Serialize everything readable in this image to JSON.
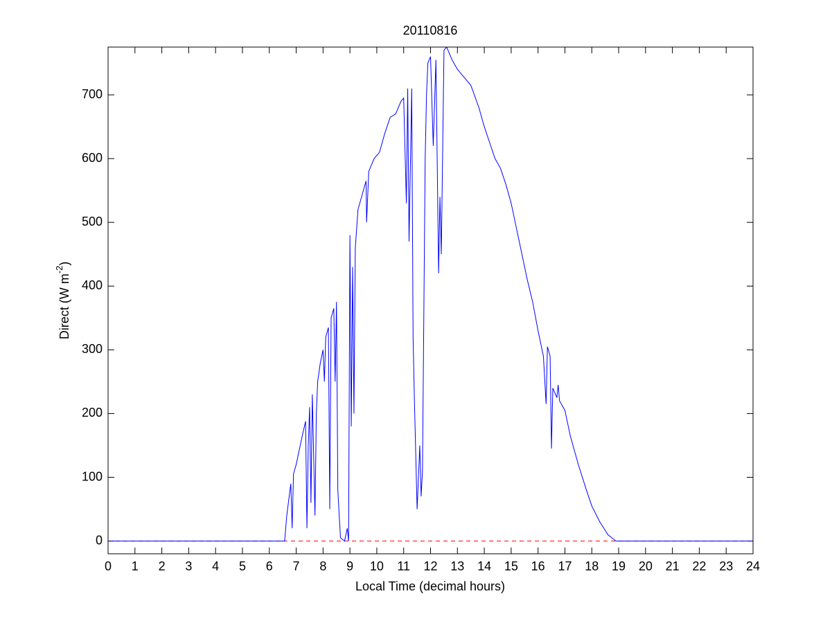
{
  "chart_data": {
    "type": "line",
    "title": "20110816",
    "x_label": "Local Time (decimal hours)",
    "y_label": {
      "text": "Direct (W m",
      "superscript": "-2",
      "suffix": ")"
    },
    "xlim": [
      0,
      24
    ],
    "xticks": [
      0,
      1,
      2,
      3,
      4,
      5,
      6,
      7,
      8,
      9,
      10,
      11,
      12,
      13,
      14,
      15,
      16,
      17,
      18,
      19,
      20,
      21,
      22,
      23,
      24
    ],
    "ylim": [
      -20,
      775
    ],
    "yticks": [
      0,
      100,
      200,
      300,
      400,
      500,
      600,
      700
    ],
    "grid": false,
    "reference_line": {
      "y": 0,
      "color": "#ff0000",
      "dashed": true
    },
    "x": [
      0,
      6.57,
      6.65,
      6.8,
      6.85,
      6.9,
      7.0,
      7.2,
      7.35,
      7.4,
      7.45,
      7.5,
      7.55,
      7.6,
      7.7,
      7.75,
      7.8,
      7.9,
      8.0,
      8.05,
      8.1,
      8.2,
      8.25,
      8.3,
      8.4,
      8.45,
      8.5,
      8.55,
      8.6,
      8.65,
      8.8,
      8.9,
      8.95,
      9.0,
      9.05,
      9.1,
      9.15,
      9.2,
      9.3,
      9.5,
      9.6,
      9.62,
      9.7,
      9.9,
      10.1,
      10.3,
      10.5,
      10.7,
      10.9,
      11.0,
      11.1,
      11.15,
      11.2,
      11.3,
      11.35,
      11.4,
      11.5,
      11.6,
      11.65,
      11.7,
      11.8,
      11.85,
      11.9,
      12.0,
      12.1,
      12.2,
      12.3,
      12.35,
      12.4,
      12.5,
      12.6,
      12.8,
      13.0,
      13.2,
      13.5,
      13.8,
      14.0,
      14.2,
      14.4,
      14.6,
      14.8,
      15.0,
      15.2,
      15.4,
      15.6,
      15.8,
      16.0,
      16.2,
      16.3,
      16.35,
      16.45,
      16.5,
      16.55,
      16.7,
      16.75,
      16.8,
      17.0,
      17.2,
      17.5,
      17.8,
      18.0,
      18.3,
      18.6,
      18.9,
      24
    ],
    "series": [
      {
        "color": "#0000ff",
        "values": [
          0,
          0,
          40,
          90,
          20,
          105,
          120,
          160,
          188,
          20,
          150,
          210,
          60,
          230,
          40,
          200,
          250,
          280,
          300,
          250,
          320,
          335,
          50,
          350,
          365,
          250,
          375,
          80,
          40,
          5,
          0,
          20,
          0,
          480,
          180,
          430,
          200,
          460,
          520,
          550,
          565,
          500,
          580,
          600,
          610,
          640,
          665,
          670,
          690,
          695,
          530,
          710,
          470,
          710,
          320,
          220,
          50,
          150,
          70,
          110,
          600,
          700,
          750,
          760,
          620,
          755,
          420,
          540,
          450,
          770,
          775,
          755,
          740,
          730,
          715,
          680,
          650,
          625,
          600,
          585,
          560,
          530,
          490,
          450,
          410,
          375,
          330,
          290,
          215,
          305,
          290,
          145,
          240,
          225,
          245,
          220,
          205,
          165,
          120,
          80,
          55,
          30,
          10,
          0,
          0
        ]
      }
    ]
  }
}
